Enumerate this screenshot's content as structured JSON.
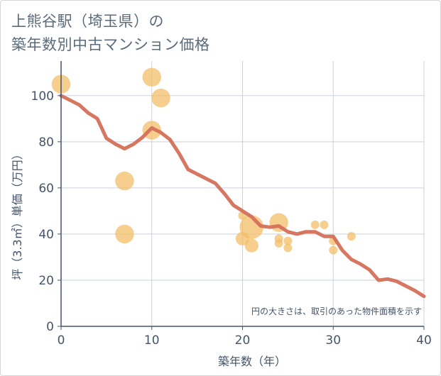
{
  "title_line1": "上熊谷駅（埼玉県）の",
  "title_line2": "築年数別中古マンション価格",
  "chart_data": {
    "type": "scatter",
    "title": "上熊谷駅（埼玉県）の築年数別中古マンション価格",
    "xlabel": "築年数（年）",
    "ylabel": "坪（3.3㎡）単価（万円）",
    "xlim": [
      0,
      40
    ],
    "ylim": [
      0,
      115
    ],
    "xticks": [
      0,
      10,
      20,
      30,
      40
    ],
    "yticks": [
      0,
      20,
      40,
      60,
      80,
      100
    ],
    "grid": true,
    "note": "円の大きさは、取引のあった物件面積を示す",
    "colors": {
      "bubble": "#f3be68",
      "line": "#d4705a",
      "grid": "#c9d3e0",
      "axis": "#44546a"
    },
    "bubbles": [
      {
        "x": 0,
        "y": 105,
        "size": 3
      },
      {
        "x": 7,
        "y": 63,
        "size": 3
      },
      {
        "x": 7,
        "y": 40,
        "size": 3
      },
      {
        "x": 10,
        "y": 108,
        "size": 3
      },
      {
        "x": 10,
        "y": 85,
        "size": 3
      },
      {
        "x": 11,
        "y": 99,
        "size": 3
      },
      {
        "x": 20,
        "y": 48,
        "size": 1
      },
      {
        "x": 20,
        "y": 38,
        "size": 2
      },
      {
        "x": 21,
        "y": 43,
        "size": 4
      },
      {
        "x": 21,
        "y": 35,
        "size": 2
      },
      {
        "x": 24,
        "y": 45,
        "size": 3
      },
      {
        "x": 24,
        "y": 38,
        "size": 1
      },
      {
        "x": 24,
        "y": 36,
        "size": 1
      },
      {
        "x": 25,
        "y": 37,
        "size": 1
      },
      {
        "x": 25,
        "y": 34,
        "size": 1
      },
      {
        "x": 28,
        "y": 44,
        "size": 1
      },
      {
        "x": 29,
        "y": 44,
        "size": 1
      },
      {
        "x": 30,
        "y": 37,
        "size": 1
      },
      {
        "x": 30,
        "y": 33,
        "size": 1
      },
      {
        "x": 32,
        "y": 39,
        "size": 1
      }
    ],
    "trend": {
      "x": [
        0,
        1,
        2,
        3,
        4,
        5,
        6,
        7,
        8,
        9,
        10,
        11,
        12,
        13,
        14,
        15,
        16,
        17,
        18,
        19,
        20,
        21,
        22,
        23,
        24,
        25,
        26,
        27,
        28,
        29,
        30,
        31,
        32,
        33,
        34,
        35,
        36,
        37,
        38,
        39,
        40
      ],
      "y": [
        100,
        98,
        96,
        92.5,
        90,
        81.5,
        79,
        77,
        79,
        82,
        86,
        84,
        81,
        75,
        68,
        66,
        64,
        62,
        57.5,
        52.5,
        50,
        47.5,
        43.5,
        43,
        43.5,
        41,
        40,
        41,
        41,
        39,
        39,
        33,
        29,
        27,
        24.5,
        20,
        20.5,
        19.5,
        17.5,
        15.5,
        13
      ]
    }
  }
}
